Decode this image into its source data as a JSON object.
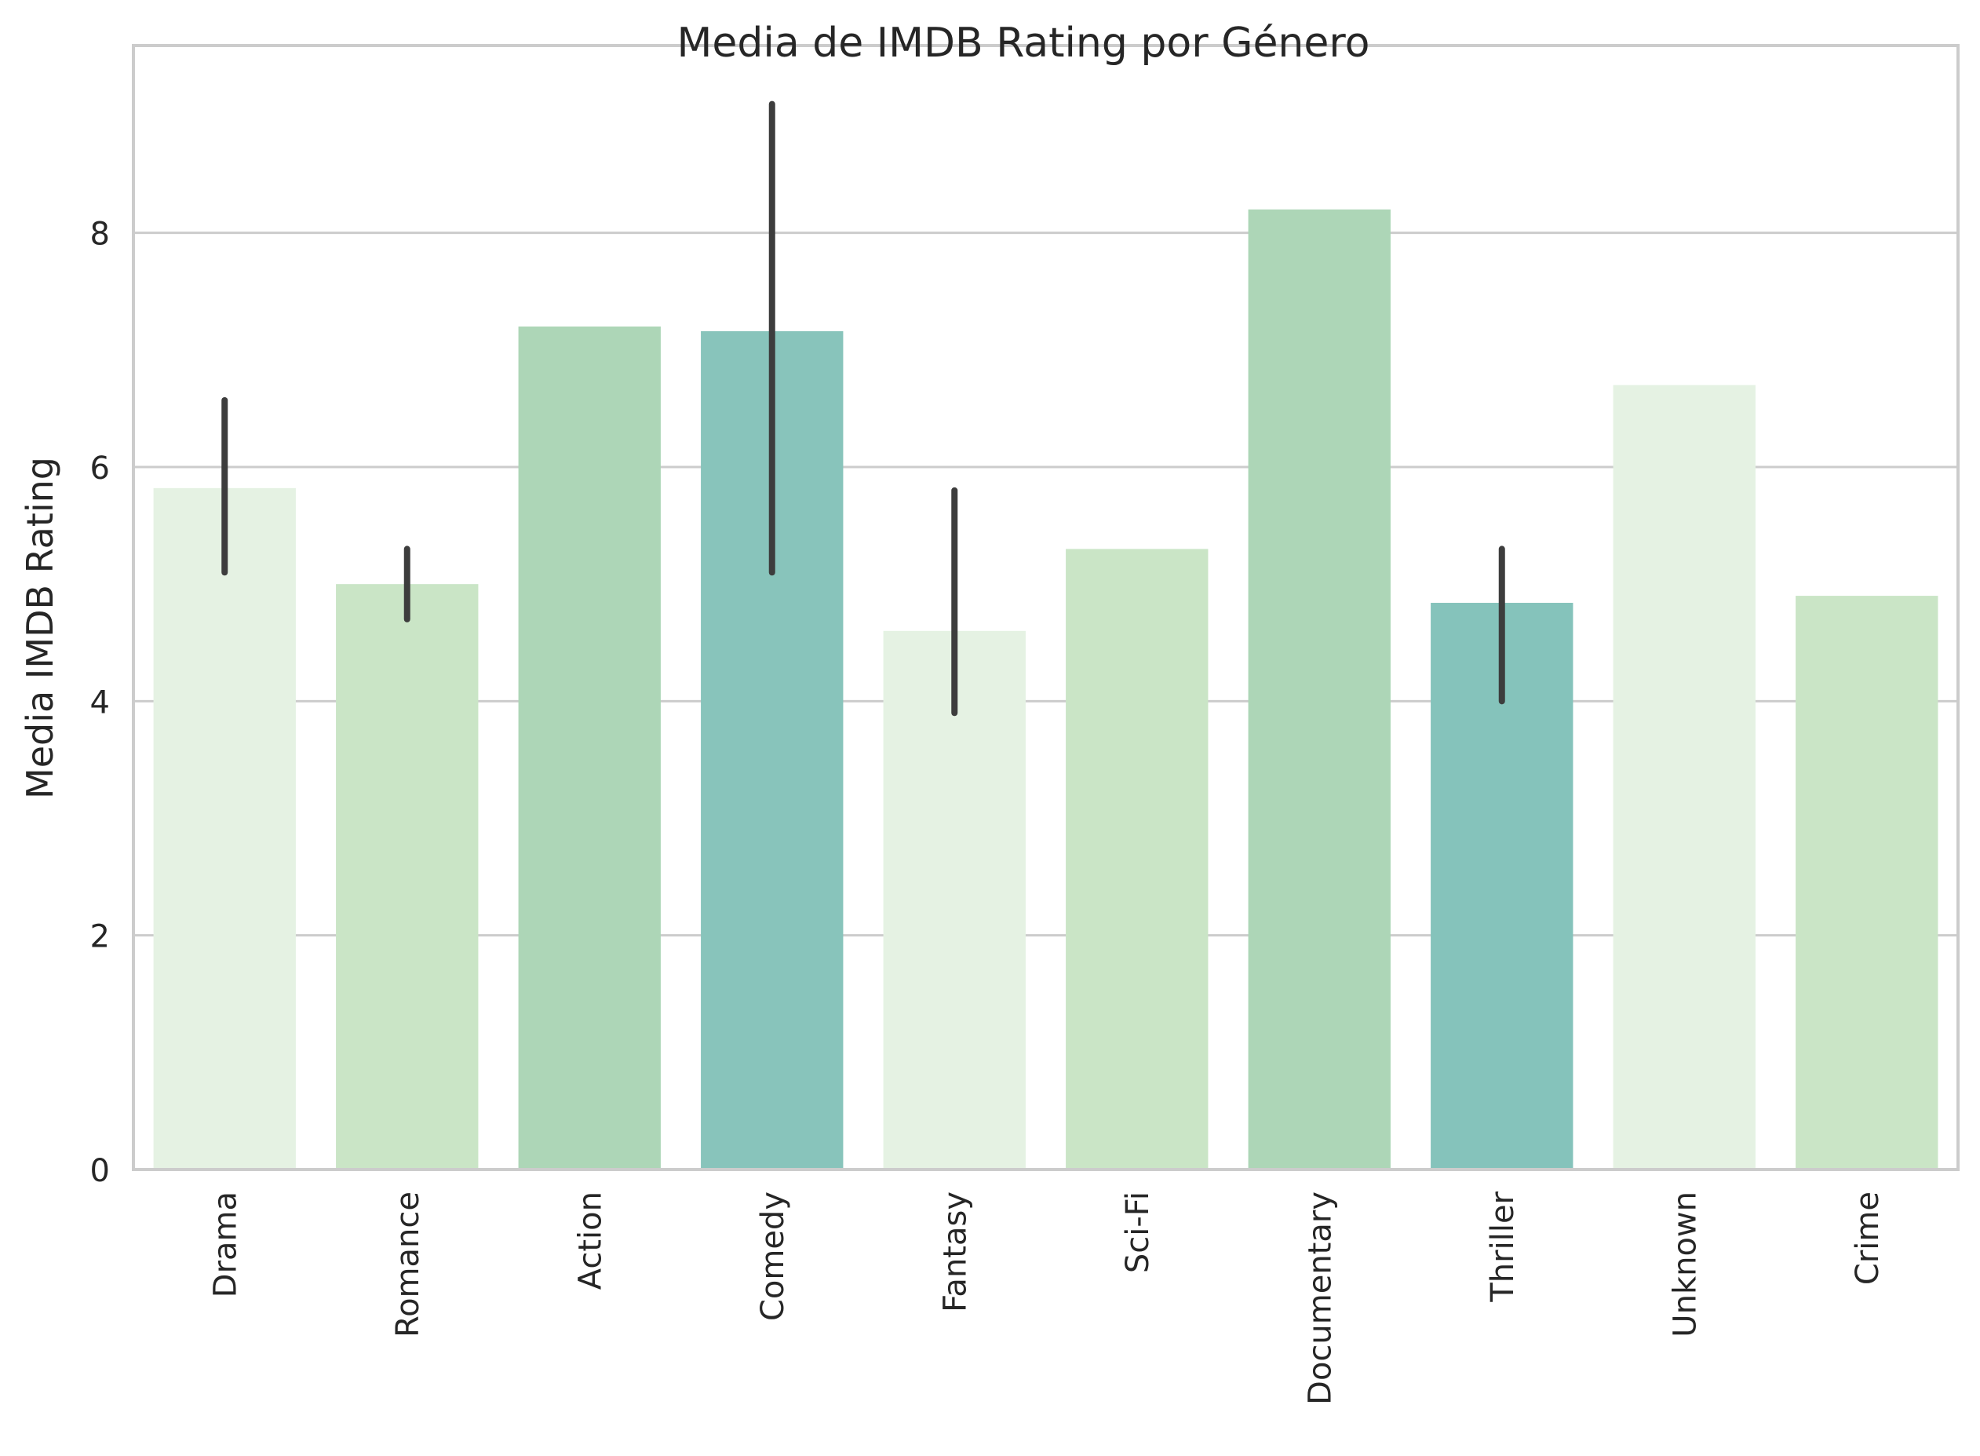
{
  "chart_data": {
    "type": "bar",
    "title": "Media de IMDB Rating por Género",
    "xlabel": "",
    "ylabel": "Media IMDB Rating",
    "ylim": [
      0,
      9.6
    ],
    "yticks": [
      0,
      2,
      4,
      6,
      8
    ],
    "ytick_labels": [
      "0",
      "2",
      "4",
      "6",
      "8"
    ],
    "grid": true,
    "categories": [
      "Drama",
      "Romance",
      "Action",
      "Comedy",
      "Fantasy",
      "Sci-Fi",
      "Documentary",
      "Thriller",
      "Unknown",
      "Crime"
    ],
    "values": [
      5.82,
      5.0,
      7.2,
      7.16,
      4.6,
      5.3,
      8.2,
      4.84,
      6.7,
      4.9
    ],
    "error_bars": [
      [
        5.1,
        6.57
      ],
      [
        4.7,
        5.3
      ],
      null,
      [
        5.1,
        9.1
      ],
      [
        3.9,
        5.8
      ],
      null,
      null,
      [
        4.0,
        5.3
      ],
      null,
      null
    ],
    "colors": [
      "#e5f2e3",
      "#cae5c6",
      "#add6b7",
      "#88c4bb",
      "#e5f2e3",
      "#cae5c6",
      "#add6b7",
      "#85c3bb",
      "#e5f2e3",
      "#cae5c6"
    ],
    "error_color": "#3d3d3d",
    "grid_color": "#cccccc",
    "axes_edge_color": "#cccccc"
  }
}
